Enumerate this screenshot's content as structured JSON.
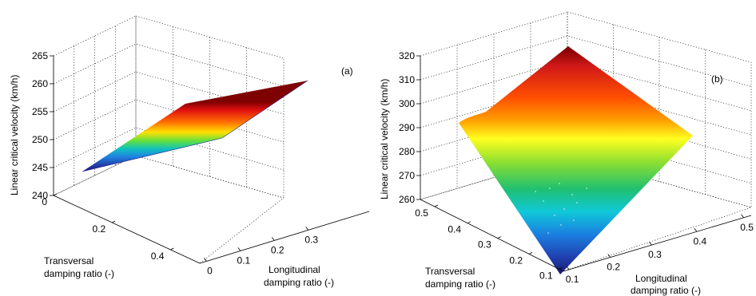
{
  "chart_data": [
    {
      "type": "surface",
      "panel_label": "(a)",
      "zlabel": "Linear critical velocity (km/h)",
      "xlabel": [
        "Longitudinal",
        "damping ratio (-)"
      ],
      "ylabel": [
        "Transversal",
        "damping ratio (-)"
      ],
      "zlim": [
        240,
        265
      ],
      "z_ticks": [
        "240",
        "245",
        "250",
        "255",
        "260",
        "265"
      ],
      "x_ticks": [
        "0",
        "0.1",
        "0.2",
        "0.3"
      ],
      "y_ticks": [
        "0",
        "0.2",
        "0.4"
      ],
      "grid": true,
      "surface_corners": [
        {
          "longitudinal": 0,
          "transversal": 0.4,
          "velocity": 244
        },
        {
          "longitudinal": 0.35,
          "transversal": 0.4,
          "velocity": 247
        },
        {
          "longitudinal": 0,
          "transversal": 0,
          "velocity": 256
        },
        {
          "longitudinal": 0.35,
          "transversal": 0,
          "velocity": 262
        }
      ]
    },
    {
      "type": "surface",
      "panel_label": "(b)",
      "zlabel": "Linear critical velocity (km/h)",
      "xlabel": [
        "Longitudinal",
        "damping ratio (-)"
      ],
      "ylabel": [
        "Transversal",
        "damping ratio (-)"
      ],
      "zlim": [
        260,
        320
      ],
      "z_ticks": [
        "260",
        "270",
        "280",
        "290",
        "300",
        "310",
        "320"
      ],
      "x_ticks": [
        "0.1",
        "0.2",
        "0.3",
        "0.4",
        "0.5"
      ],
      "y_ticks": [
        "0.1",
        "0.2",
        "0.3",
        "0.4",
        "0.5"
      ],
      "grid": true,
      "surface_corners": [
        {
          "longitudinal": 0.1,
          "transversal": 0.1,
          "velocity": 262
        },
        {
          "longitudinal": 0.5,
          "transversal": 0.1,
          "velocity": 286
        },
        {
          "longitudinal": 0.1,
          "transversal": 0.5,
          "velocity": 291
        },
        {
          "longitudinal": 0.5,
          "transversal": 0.5,
          "velocity": 323
        }
      ]
    }
  ]
}
